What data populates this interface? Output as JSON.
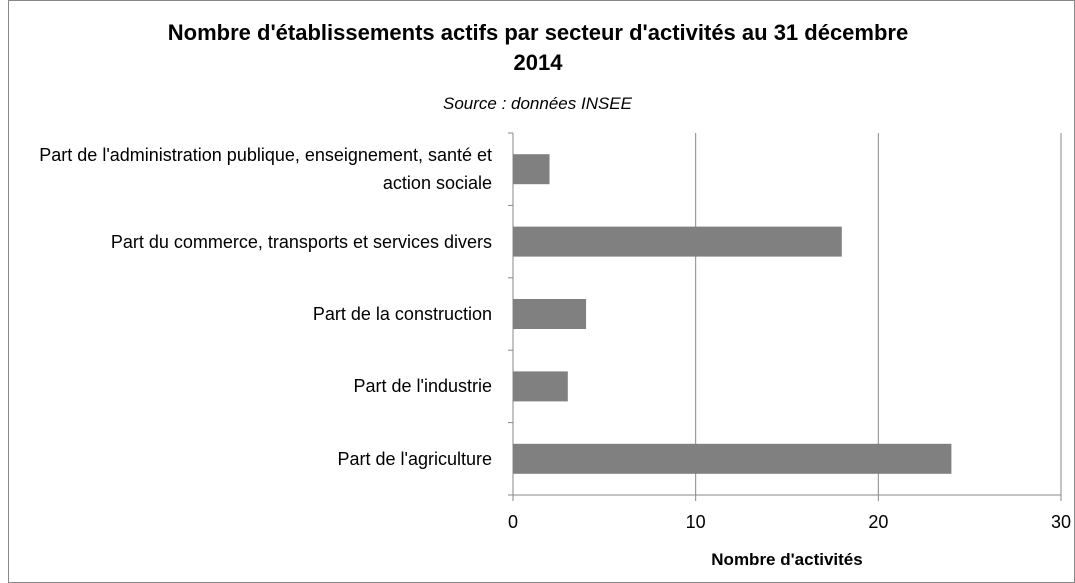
{
  "chart_data": {
    "type": "bar",
    "orientation": "horizontal",
    "title": "Nombre d'établissements actifs par secteur d'activités au 31 décembre 2014",
    "subtitle": "Source : données INSEE",
    "x_label": "Nombre d'activités",
    "categories": [
      "Part de l'administration publique, enseignement, santé et action sociale",
      "Part du commerce, transports et services divers",
      "Part de la construction",
      "Part de l'industrie",
      "Part de l'agriculture"
    ],
    "values": [
      2,
      18,
      4,
      3,
      24
    ],
    "color": "#808080",
    "xlim": [
      0,
      30
    ],
    "xticks": [
      0,
      10,
      20,
      30
    ],
    "grid": true
  }
}
